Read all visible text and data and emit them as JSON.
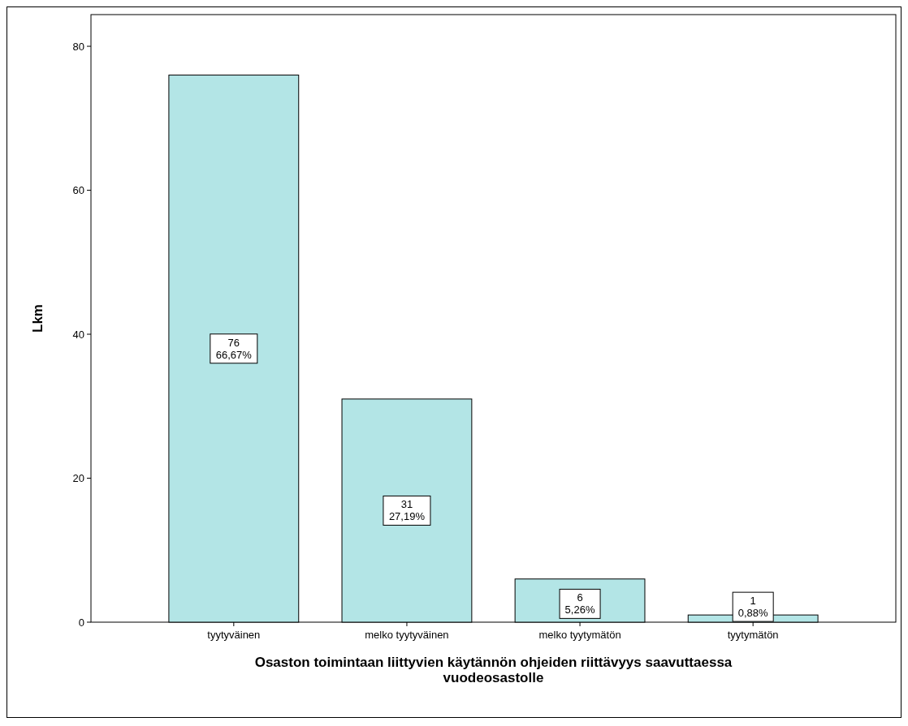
{
  "chart_data": {
    "type": "bar",
    "xlabel": "Osaston toimintaan liittyvien käytännön ohjeiden riittävyys saavuttaessa vuodeosastolle",
    "ylabel": "Lkm",
    "categories": [
      "tyytyväinen",
      "melko tyytyväinen",
      "melko tyytymätön",
      "tyytymätön"
    ],
    "values": [
      76,
      31,
      6,
      1
    ],
    "value_labels": [
      "76\n66,67%",
      "31\n27,19%",
      "6\n5,26%",
      "1\n0,88%"
    ],
    "color": "#b3e5e6",
    "ylim": [
      0,
      84.4
    ],
    "yticks": [
      0,
      20,
      40,
      60,
      80
    ],
    "grid": false
  }
}
